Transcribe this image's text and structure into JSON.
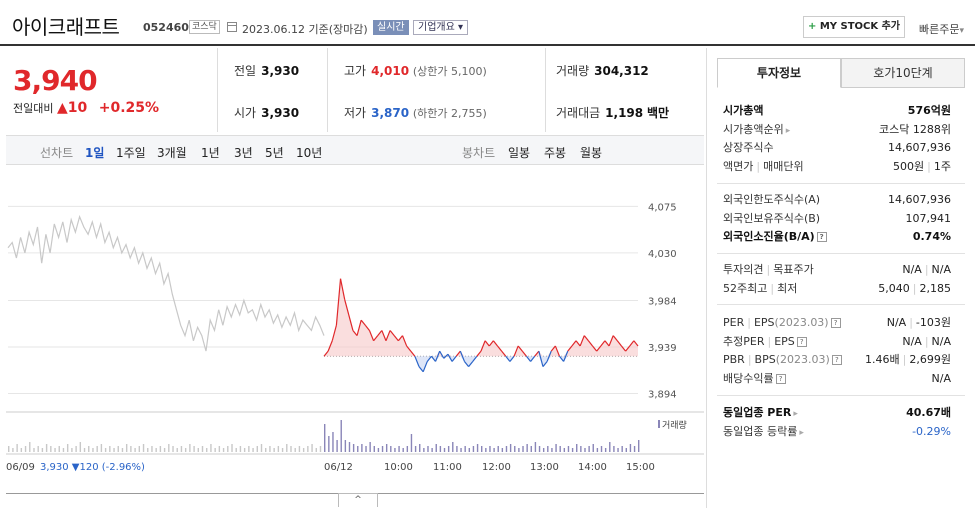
{
  "header": {
    "company_name": "아이크래프트",
    "code": "052460",
    "market": "코스닥",
    "date": "2023.06.12  기준(장마감)",
    "live_label": "실시간",
    "corp_label": "기업개요",
    "mystock_label": "MY STOCK 추가",
    "quick_order": "빠른주문"
  },
  "price": {
    "current": "3,940",
    "change_label": "전일대비",
    "change": "10",
    "change_pct": "+0.25%"
  },
  "stats": {
    "prev_close_label": "전일",
    "prev_close": "3,930",
    "high_label": "고가",
    "high": "4,010",
    "upper_limit": "(상한가 5,100)",
    "volume_label": "거래량",
    "volume": "304,312",
    "open_label": "시가",
    "open": "3,930",
    "low_label": "저가",
    "low": "3,870",
    "lower_limit": "(하한가 2,755)",
    "value_label": "거래대금",
    "value": "1,198",
    "value_unit": "백만"
  },
  "toolbar": {
    "line_label": "선차트",
    "periods": [
      "1일",
      "1주일",
      "3개월",
      "1년",
      "3년",
      "5년",
      "10년"
    ],
    "candle_label": "봉차트",
    "candles": [
      "일봉",
      "주봉",
      "월봉"
    ]
  },
  "chart_data": {
    "type": "line",
    "base_price": 3930,
    "ylim": [
      3880,
      4085
    ],
    "y_ticks": [
      "4,075",
      "4,030",
      "3,984",
      "3,939",
      "3,894"
    ],
    "y_tick_values": [
      4075,
      4030,
      3984,
      3939,
      3894
    ],
    "x_ticks": [
      "06/09",
      "06/12",
      "10:00",
      "11:00",
      "12:00",
      "13:00",
      "14:00",
      "15:00"
    ],
    "volume_label": "거래량",
    "prev_day_summary": {
      "date": "06/09",
      "close": "3,930",
      "change": "▼120",
      "pct": "(-2.96%)"
    },
    "prev_day_series": [
      4035,
      4040,
      4025,
      4045,
      4030,
      4050,
      4038,
      4055,
      4020,
      4048,
      4030,
      4058,
      4045,
      4060,
      4040,
      4062,
      4050,
      4065,
      4055,
      4048,
      4060,
      4045,
      4058,
      4040,
      4050,
      4035,
      4045,
      4030,
      4038,
      4025,
      4035,
      4020,
      4030,
      4015,
      4025,
      4010,
      4020,
      4000,
      4010,
      3990,
      3975,
      3960,
      3950,
      3965,
      3945,
      3958,
      3950,
      3935,
      3965,
      3955,
      3975,
      3960,
      3978,
      3968,
      3980,
      3970,
      3984,
      3972,
      3975,
      3965,
      3980,
      3968,
      3975,
      3962,
      3970,
      3958,
      3968,
      3960,
      3972,
      3955,
      3965,
      3960,
      3955,
      3968,
      3960,
      3950
    ],
    "today_series": [
      3930,
      3935,
      3945,
      3960,
      4005,
      3985,
      3970,
      3955,
      3950,
      3965,
      3960,
      3955,
      3945,
      3950,
      3955,
      3945,
      3955,
      3950,
      3945,
      3950,
      3940,
      3935,
      3930,
      3920,
      3915,
      3925,
      3930,
      3925,
      3935,
      3928,
      3932,
      3925,
      3930,
      3935,
      3925,
      3920,
      3925,
      3930,
      3935,
      3945,
      3940,
      3945,
      3940,
      3935,
      3930,
      3925,
      3930,
      3940,
      3935,
      3930,
      3925,
      3930,
      3935,
      3920,
      3925,
      3935,
      3940,
      3930,
      3925,
      3935,
      3940,
      3945,
      3940,
      3950,
      3945,
      3940,
      3935,
      3940,
      3945,
      3940,
      3950,
      3945,
      3940,
      3935,
      3940,
      3945,
      3940
    ],
    "prev_volume": [
      3,
      2,
      4,
      2,
      3,
      5,
      2,
      3,
      2,
      4,
      3,
      2,
      3,
      2,
      4,
      2,
      3,
      5,
      2,
      3,
      2,
      3,
      4,
      2,
      3,
      2,
      3,
      2,
      4,
      3,
      2,
      3,
      4,
      2,
      3,
      2,
      3,
      2,
      4,
      3,
      2,
      3,
      2,
      4,
      3,
      2,
      3,
      2,
      4,
      2,
      3,
      2,
      3,
      4,
      2,
      3,
      2,
      3,
      2,
      3,
      4,
      2,
      3,
      2,
      3,
      2,
      4,
      3,
      2,
      3,
      2,
      3,
      4,
      2,
      3,
      2
    ],
    "today_volume": [
      14,
      8,
      10,
      6,
      16,
      6,
      5,
      4,
      3,
      4,
      3,
      5,
      3,
      2,
      3,
      4,
      3,
      2,
      3,
      2,
      3,
      9,
      3,
      4,
      2,
      3,
      2,
      4,
      3,
      2,
      3,
      5,
      3,
      2,
      3,
      2,
      3,
      4,
      3,
      2,
      3,
      2,
      3,
      2,
      3,
      4,
      3,
      2,
      3,
      4,
      3,
      5,
      3,
      2,
      3,
      2,
      4,
      3,
      2,
      3,
      2,
      4,
      3,
      2,
      3,
      4,
      2,
      3,
      2,
      5,
      3,
      2,
      3,
      2,
      4,
      3,
      6
    ]
  },
  "side": {
    "tab_info": "투자정보",
    "tab_hoga": "호가10단계",
    "market_cap_label": "시가총액",
    "market_cap": "576억원",
    "cap_rank_label": "시가총액순위",
    "cap_rank": "코스닥 1288위",
    "shares_label": "상장주식수",
    "shares": "14,607,936",
    "par_label": "액면가",
    "unit_label": "매매단위",
    "par": "500원",
    "unit": "1주",
    "foreign_limit_label": "외국인한도주식수(A)",
    "foreign_limit": "14,607,936",
    "foreign_hold_label": "외국인보유주식수(B)",
    "foreign_hold": "107,941",
    "foreign_ratio_label": "외국인소진율(B/A)",
    "foreign_ratio": "0.74%",
    "opinion_label": "투자의견",
    "target_label": "목표주가",
    "opinion": "N/A",
    "target": "N/A",
    "w52_high_label": "52주최고",
    "w52_low_label": "최저",
    "w52_high": "5,040",
    "w52_low": "2,185",
    "per_label": "PER",
    "eps_label": "EPS",
    "per_date": "(2023.03)",
    "per": "N/A",
    "eps": "-103원",
    "est_per_label": "추정PER",
    "est_eps_label": "EPS",
    "est_per": "N/A",
    "est_eps": "N/A",
    "pbr_label": "PBR",
    "bps_label": "BPS",
    "bps_date": "(2023.03)",
    "pbr": "1.46배",
    "bps": "2,699원",
    "div_label": "배당수익률",
    "div": "N/A",
    "ind_per_label": "동일업종 PER",
    "ind_per": "40.67배",
    "ind_rate_label": "동일업종 등락률",
    "ind_rate": "-0.29%"
  },
  "colors": {
    "up": "#e0282b",
    "down": "#2a64c8",
    "prev": "#c8c8c8",
    "volume": "#8a86b8"
  }
}
